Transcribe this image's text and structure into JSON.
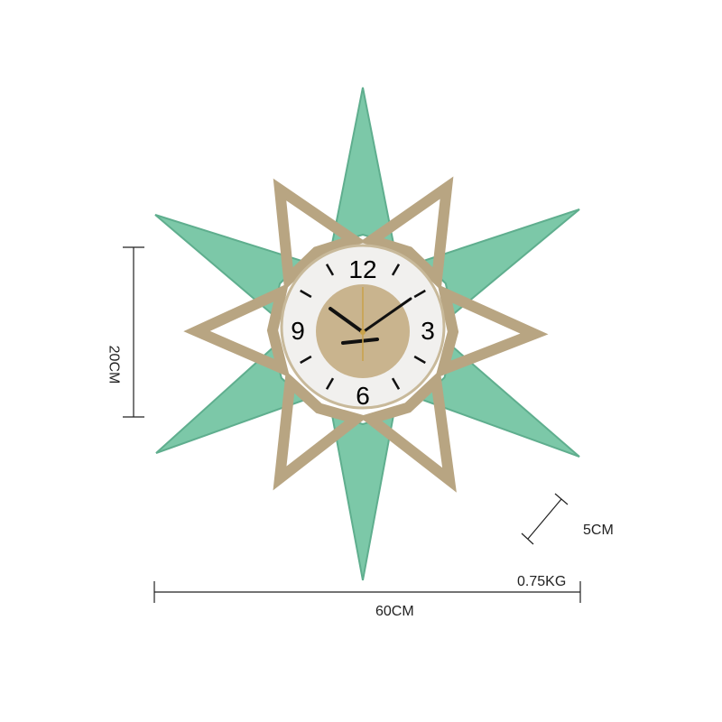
{
  "dimensions": {
    "height_label": "20CM",
    "depth_label": "5CM",
    "width_label": "60CM",
    "weight_label": "0.75KG"
  },
  "clock": {
    "numerals": [
      "12",
      "3",
      "6",
      "9"
    ],
    "colors": {
      "arms": "#7cc8a8",
      "gold": "#b8a582",
      "face": "#f1f0ee",
      "hands": "#111111"
    }
  }
}
